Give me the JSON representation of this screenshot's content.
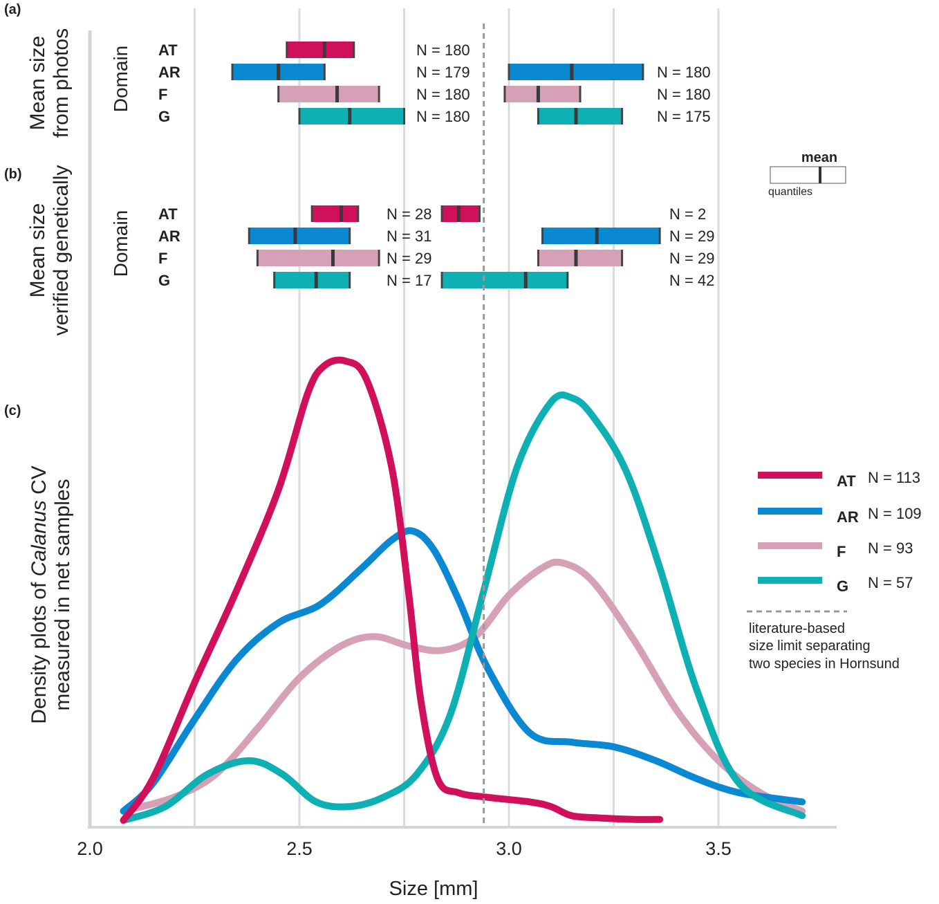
{
  "panels": {
    "a": {
      "tag": "(a)",
      "title_line1": "Mean size",
      "title_line2": "from photos",
      "domain_label": "Domain"
    },
    "b": {
      "tag": "(b)",
      "title_line1": "Mean size",
      "title_line2": "verified genetically",
      "domain_label": "Domain"
    },
    "c": {
      "tag": "(c)",
      "title_prefix": "Density plots of ",
      "title_italic": "Calanus",
      "title_suffix": " CV",
      "title_line2": "measured in net samples"
    }
  },
  "domains": [
    "AT",
    "AR",
    "F",
    "G"
  ],
  "colors": {
    "AT": "#d1105c",
    "AR": "#0a88d2",
    "F": "#d6a0b6",
    "G": "#0fb0b3",
    "grid": "#d9dcdc",
    "limit": "#999999"
  },
  "key": {
    "title": "mean",
    "subtitle": "quantiles"
  },
  "legend": {
    "items": [
      {
        "code": "AT",
        "n": "N = 113"
      },
      {
        "code": "AR",
        "n": "N = 109"
      },
      {
        "code": "F",
        "n": "N =  93"
      },
      {
        "code": "G",
        "n": "N =  57"
      }
    ],
    "note_line1": "literature-based",
    "note_line2": "size limit separating",
    "note_line3": "two species in Hornsund"
  },
  "chart_data": [
    {
      "type": "boxplot",
      "panel": "(a)",
      "title": "Mean size from photos",
      "groups": [
        {
          "domain": "AT",
          "species": 1,
          "q_low": 2.47,
          "mean": 2.56,
          "q_high": 2.63,
          "n": "N = 180"
        },
        {
          "domain": "AR",
          "species": 1,
          "q_low": 2.34,
          "mean": 2.45,
          "q_high": 2.56,
          "n": "N = 179"
        },
        {
          "domain": "F",
          "species": 1,
          "q_low": 2.45,
          "mean": 2.59,
          "q_high": 2.69,
          "n": "N = 180"
        },
        {
          "domain": "G",
          "species": 1,
          "q_low": 2.5,
          "mean": 2.62,
          "q_high": 2.75,
          "n": "N = 180"
        },
        {
          "domain": "AR",
          "species": 2,
          "q_low": 3.0,
          "mean": 3.15,
          "q_high": 3.32,
          "n": "N = 180"
        },
        {
          "domain": "F",
          "species": 2,
          "q_low": 2.99,
          "mean": 3.07,
          "q_high": 3.17,
          "n": "N = 180"
        },
        {
          "domain": "G",
          "species": 2,
          "q_low": 3.07,
          "mean": 3.16,
          "q_high": 3.27,
          "n": "N = 175"
        }
      ]
    },
    {
      "type": "boxplot",
      "panel": "(b)",
      "title": "Mean size verified genetically",
      "groups": [
        {
          "domain": "AT",
          "species": 1,
          "q_low": 2.53,
          "mean": 2.6,
          "q_high": 2.64,
          "n": "N = 28"
        },
        {
          "domain": "AR",
          "species": 1,
          "q_low": 2.38,
          "mean": 2.49,
          "q_high": 2.62,
          "n": "N = 31"
        },
        {
          "domain": "F",
          "species": 1,
          "q_low": 2.4,
          "mean": 2.58,
          "q_high": 2.69,
          "n": "N = 29"
        },
        {
          "domain": "G",
          "species": 1,
          "q_low": 2.44,
          "mean": 2.54,
          "q_high": 2.62,
          "n": "N = 17"
        },
        {
          "domain": "AT",
          "species": 2,
          "q_low": 2.84,
          "mean": 2.88,
          "q_high": 2.93,
          "n": "N = 2"
        },
        {
          "domain": "AR",
          "species": 2,
          "q_low": 3.08,
          "mean": 3.21,
          "q_high": 3.36,
          "n": "N = 29"
        },
        {
          "domain": "F",
          "species": 2,
          "q_low": 3.07,
          "mean": 3.16,
          "q_high": 3.27,
          "n": "N = 29"
        },
        {
          "domain": "G",
          "species": 2,
          "q_low": 2.84,
          "mean": 3.04,
          "q_high": 3.14,
          "n": "N = 42"
        }
      ]
    },
    {
      "type": "line",
      "panel": "(c)",
      "title": "Density plots of Calanus CV measured in net samples",
      "xlabel": "Size [mm]",
      "xlim": [
        2.0,
        3.75
      ],
      "xticks": [
        "2.0",
        "2.5",
        "3.0",
        "3.5"
      ],
      "grid": true,
      "size_limit": 2.94,
      "series": [
        {
          "name": "AT",
          "n": "N = 113",
          "x": [
            2.08,
            2.15,
            2.25,
            2.35,
            2.45,
            2.52,
            2.56,
            2.61,
            2.66,
            2.72,
            2.76,
            2.79,
            2.83,
            2.88,
            2.95,
            3.05,
            3.1,
            3.15,
            3.22,
            3.3,
            3.36
          ],
          "y": [
            0.0,
            0.09,
            0.3,
            0.5,
            0.72,
            0.93,
            0.99,
            1.0,
            0.96,
            0.77,
            0.5,
            0.26,
            0.09,
            0.06,
            0.05,
            0.04,
            0.03,
            0.01,
            0.005,
            0.002,
            0.002
          ]
        },
        {
          "name": "AR",
          "n": "N = 109",
          "x": [
            2.08,
            2.15,
            2.25,
            2.35,
            2.45,
            2.55,
            2.65,
            2.72,
            2.77,
            2.82,
            2.88,
            2.95,
            3.05,
            3.15,
            3.25,
            3.35,
            3.45,
            3.55,
            3.7
          ],
          "y": [
            0.02,
            0.08,
            0.22,
            0.35,
            0.43,
            0.47,
            0.55,
            0.61,
            0.63,
            0.59,
            0.48,
            0.33,
            0.19,
            0.17,
            0.16,
            0.13,
            0.09,
            0.06,
            0.04
          ]
        },
        {
          "name": "F",
          "n": "N = 93",
          "x": [
            2.08,
            2.2,
            2.3,
            2.4,
            2.5,
            2.6,
            2.68,
            2.76,
            2.84,
            2.92,
            3.0,
            3.08,
            3.13,
            3.2,
            3.3,
            3.4,
            3.5,
            3.6,
            3.7
          ],
          "y": [
            0.02,
            0.05,
            0.1,
            0.2,
            0.31,
            0.38,
            0.4,
            0.38,
            0.37,
            0.4,
            0.49,
            0.55,
            0.56,
            0.52,
            0.39,
            0.24,
            0.13,
            0.06,
            0.02
          ]
        },
        {
          "name": "G",
          "n": "N = 57",
          "x": [
            2.08,
            2.18,
            2.28,
            2.38,
            2.46,
            2.54,
            2.62,
            2.7,
            2.78,
            2.86,
            2.94,
            3.02,
            3.1,
            3.15,
            3.2,
            3.28,
            3.36,
            3.45,
            3.55,
            3.7
          ],
          "y": [
            0.0,
            0.03,
            0.1,
            0.13,
            0.1,
            0.04,
            0.03,
            0.05,
            0.1,
            0.23,
            0.5,
            0.77,
            0.91,
            0.92,
            0.88,
            0.76,
            0.55,
            0.28,
            0.08,
            0.01
          ]
        }
      ]
    }
  ]
}
